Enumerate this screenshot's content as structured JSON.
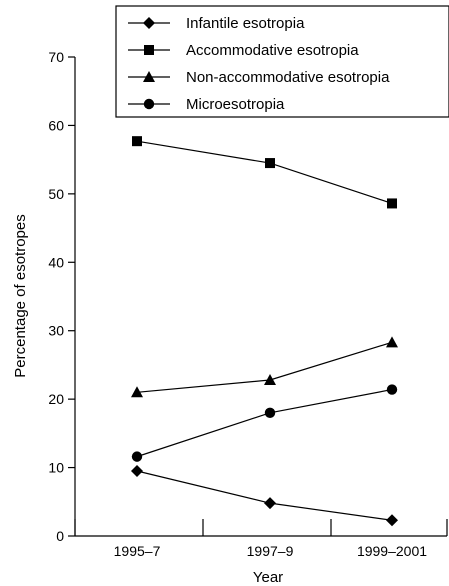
{
  "chart_data": {
    "type": "line",
    "title": "",
    "xlabel": "Year",
    "ylabel": "Percentage of esotropes",
    "categories": [
      "1995–7",
      "1997–9",
      "1999–2001"
    ],
    "ylim": [
      0,
      70
    ],
    "yticks": [
      0,
      10,
      20,
      30,
      40,
      50,
      60,
      70
    ],
    "grid": false,
    "legend_position": "top-right",
    "series": [
      {
        "name": "Infantile esotropia",
        "marker": "diamond",
        "values": [
          9.5,
          4.8,
          2.3
        ]
      },
      {
        "name": "Accommodative esotropia",
        "marker": "square",
        "values": [
          57.7,
          54.5,
          48.6
        ]
      },
      {
        "name": "Non-accommodative esotropia",
        "marker": "triangle",
        "values": [
          21.0,
          22.8,
          28.3
        ]
      },
      {
        "name": "Microesotropia",
        "marker": "circle",
        "values": [
          11.6,
          18.0,
          21.4
        ]
      }
    ]
  }
}
